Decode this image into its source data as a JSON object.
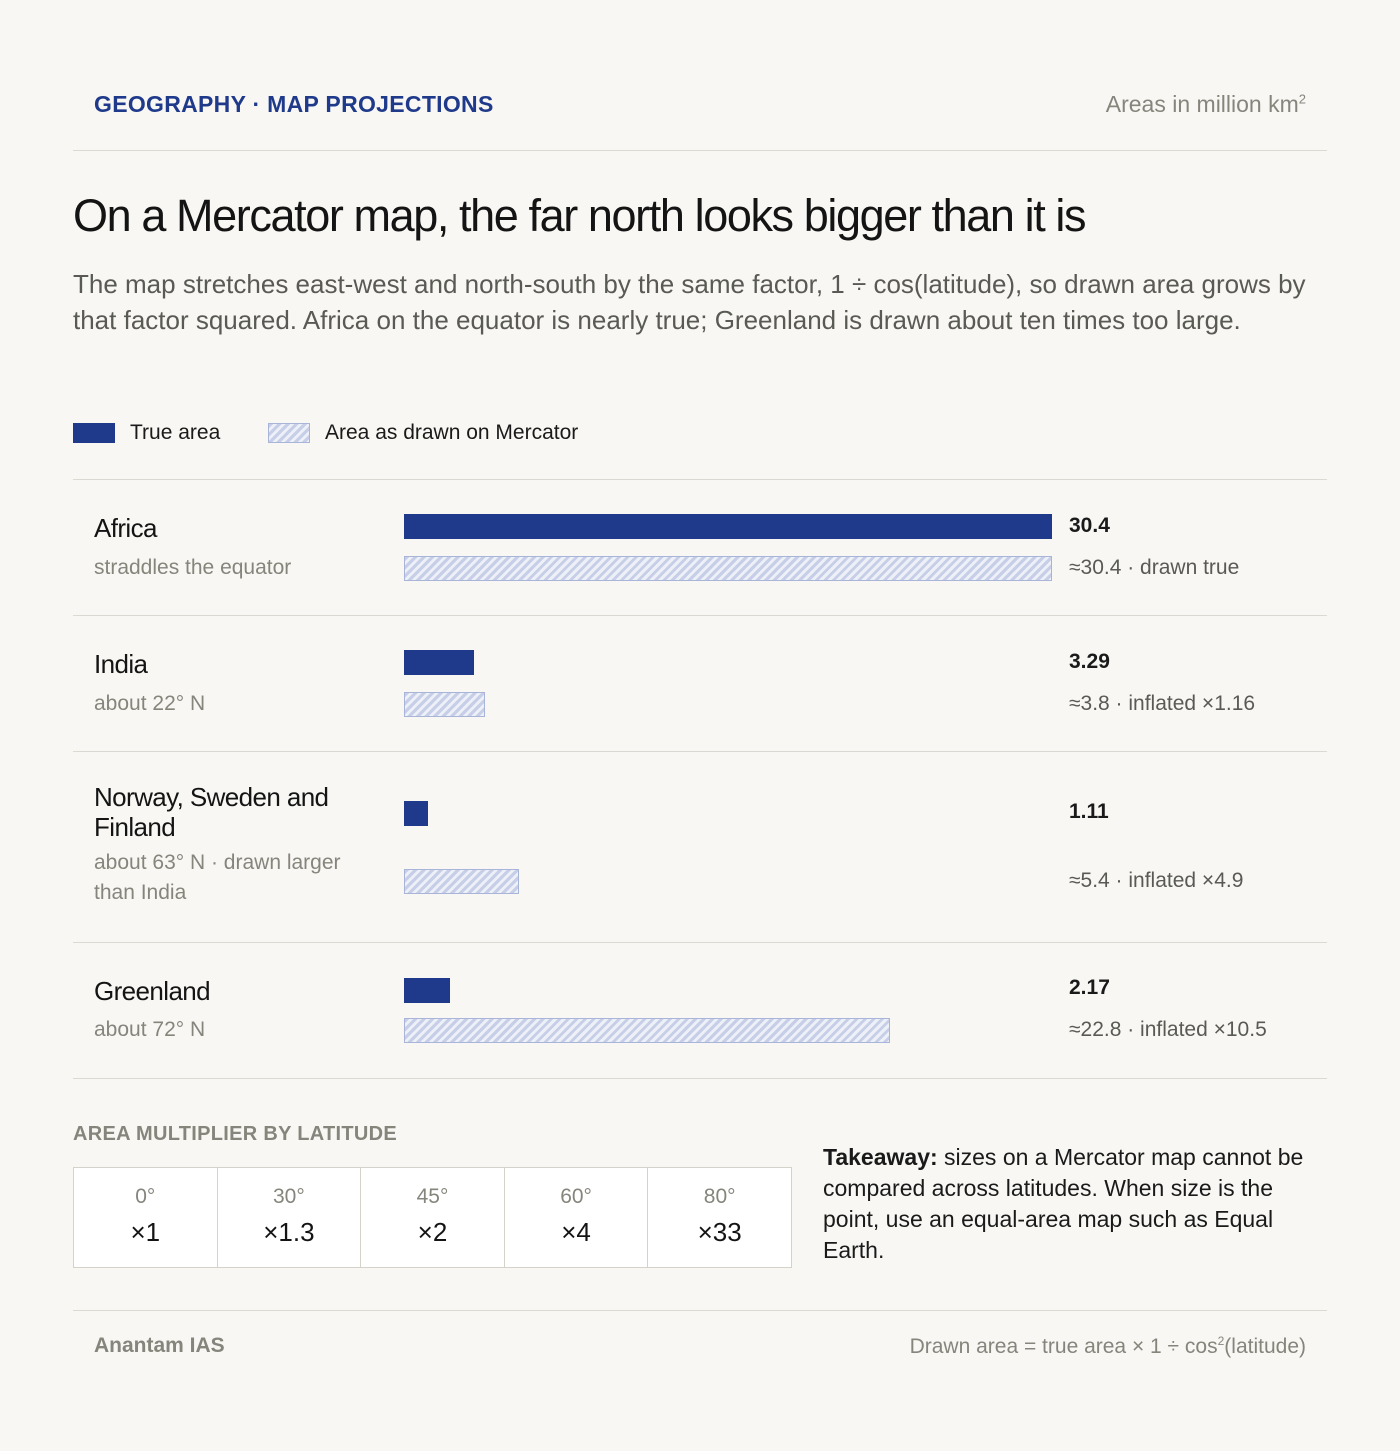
{
  "header": {
    "kicker": "GEOGRAPHY · MAP PROJECTIONS",
    "units_prefix": "Areas in million km",
    "units_sup": "2"
  },
  "title": "On a Mercator map, the far north looks bigger than it is",
  "subtitle": "The map stretches east-west and north-south by the same factor, 1 ÷ cos(latitude), so drawn area grows by that factor squared. Africa on the equator is nearly true; Greenland is drawn about ten times too large.",
  "legend": {
    "true_label": "True area",
    "drawn_label": "Area as drawn on Mercator"
  },
  "chart_data": {
    "type": "bar",
    "categories": [
      "Africa",
      "India",
      "Norway, Sweden and Finland",
      "Greenland"
    ],
    "series": [
      {
        "name": "True area",
        "values": [
          30.4,
          3.29,
          1.11,
          2.17
        ]
      },
      {
        "name": "Area as drawn on Mercator",
        "values": [
          30.4,
          3.8,
          5.4,
          22.8
        ]
      }
    ],
    "xlim": [
      0,
      30.4
    ],
    "rows": [
      {
        "name": "Africa",
        "sub": "straddles the equator",
        "true_label": "30.4",
        "drawn_label": "≈30.4 · drawn true"
      },
      {
        "name": "India",
        "sub": "about 22° N",
        "true_label": "3.29",
        "drawn_label": "≈3.8 · inflated ×1.16"
      },
      {
        "name": "Norway, Sweden and Finland",
        "sub": "about 63° N · drawn larger than India",
        "true_label": "1.11",
        "drawn_label": "≈5.4 · inflated ×4.9"
      },
      {
        "name": "Greenland",
        "sub": "about 72° N",
        "true_label": "2.17",
        "drawn_label": "≈22.8 · inflated ×10.5"
      }
    ],
    "colors": {
      "true": "#1f3a8a",
      "drawn_hatch": "#c7cfe8",
      "drawn_border": "#a9b5d8"
    }
  },
  "multiplier": {
    "title": "AREA MULTIPLIER BY LATITUDE",
    "cells": [
      {
        "lat": "0°",
        "value": "×1"
      },
      {
        "lat": "30°",
        "value": "×1.3"
      },
      {
        "lat": "45°",
        "value": "×2"
      },
      {
        "lat": "60°",
        "value": "×4"
      },
      {
        "lat": "80°",
        "value": "×33"
      }
    ]
  },
  "takeaway": {
    "lead": "Takeaway:",
    "text": " sizes on a Mercator map cannot be compared across latitudes. When size is the point, use an equal-area map such as Equal Earth."
  },
  "footer": {
    "brand": "Anantam IAS",
    "formula_prefix": "Drawn area = true area × 1 ÷ cos",
    "formula_sup": "2",
    "formula_suffix": "(latitude)"
  }
}
